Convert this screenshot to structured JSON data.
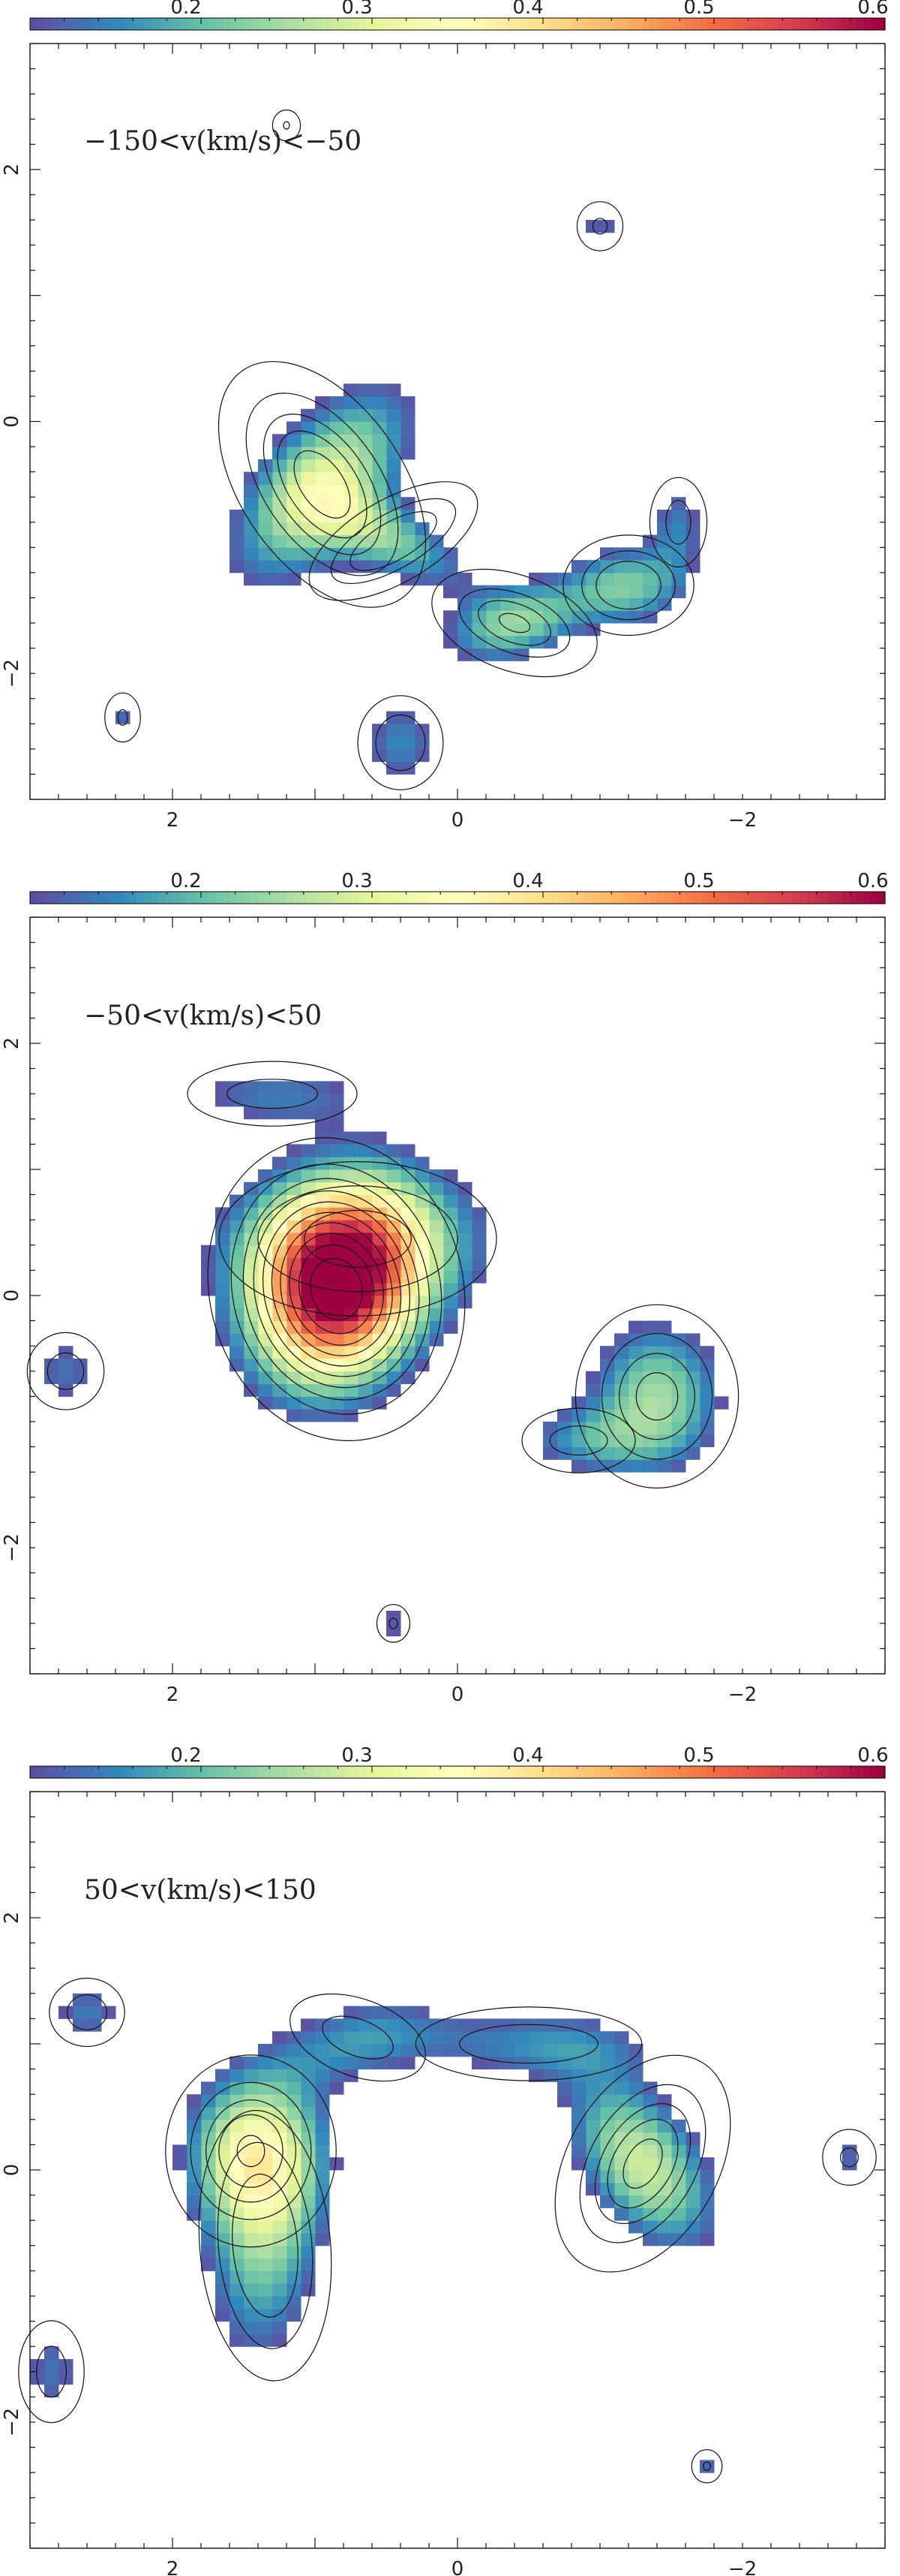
{
  "colorbar": {
    "ticks": [
      "0.2",
      "0.3",
      "0.4",
      "0.5",
      "0.6"
    ],
    "tick_values": [
      0.2,
      0.3,
      0.4,
      0.5,
      0.6
    ],
    "range": [
      0.1,
      0.6
    ],
    "colormap": "Spectral_r",
    "stops": [
      "#5e4fa2",
      "#3288bd",
      "#66c2a5",
      "#abdda4",
      "#e6f598",
      "#ffffbf",
      "#fee08b",
      "#fdae61",
      "#f46d43",
      "#d53e4f",
      "#9e0142"
    ]
  },
  "panels": [
    {
      "label": "−150<v(km/s)<−50"
    },
    {
      "label": "−50<v(km/s)<50"
    },
    {
      "label": "50<v(km/s)<150"
    }
  ],
  "axes": {
    "x_ticks": [
      "2",
      "0",
      "−2"
    ],
    "y_ticks": [
      "2",
      "0",
      "−2"
    ]
  },
  "chart_data": [
    {
      "type": "heatmap",
      "title": "−150<v(km/s)<−50",
      "xlim": [
        3,
        -3
      ],
      "ylim": [
        -3,
        3
      ],
      "x_ticks": [
        2,
        0,
        -2
      ],
      "y_ticks": [
        2,
        0,
        -2
      ],
      "clim": [
        0.1,
        0.6
      ],
      "grid": false,
      "blobs": [
        {
          "x": 0.95,
          "y": -0.5,
          "sx": 0.32,
          "sy": 0.65,
          "angle": 35,
          "peak": 0.29
        },
        {
          "x": 0.45,
          "y": -0.95,
          "sx": 0.45,
          "sy": 0.2,
          "angle": 30,
          "peak": 0.2
        },
        {
          "x": -0.4,
          "y": -1.6,
          "sx": 0.38,
          "sy": 0.22,
          "angle": -20,
          "peak": 0.23
        },
        {
          "x": -1.2,
          "y": -1.3,
          "sx": 0.3,
          "sy": 0.25,
          "angle": 0,
          "peak": 0.2
        },
        {
          "x": -1.55,
          "y": -0.8,
          "sx": 0.15,
          "sy": 0.3,
          "angle": 0,
          "peak": 0.13
        },
        {
          "x": 0.4,
          "y": -2.55,
          "sx": 0.22,
          "sy": 0.28,
          "angle": 0,
          "peak": 0.15
        },
        {
          "x": 2.35,
          "y": -2.35,
          "sx": 0.08,
          "sy": 0.15,
          "angle": 0,
          "peak": 0.12
        },
        {
          "x": -1.0,
          "y": 1.55,
          "sx": 0.12,
          "sy": 0.15,
          "angle": 0,
          "peak": 0.12
        },
        {
          "x": 1.2,
          "y": 2.35,
          "sx": 0.05,
          "sy": 0.07,
          "angle": 0,
          "peak": 0.12
        }
      ]
    },
    {
      "type": "heatmap",
      "title": "−50<v(km/s)<50",
      "xlim": [
        3,
        -3
      ],
      "ylim": [
        -3,
        3
      ],
      "x_ticks": [
        2,
        0,
        -2
      ],
      "y_ticks": [
        2,
        0,
        -2
      ],
      "clim": [
        0.1,
        0.6
      ],
      "grid": false,
      "blobs": [
        {
          "x": 0.85,
          "y": 0.05,
          "sx": 0.42,
          "sy": 0.58,
          "angle": 15,
          "peak": 0.58
        },
        {
          "x": 0.7,
          "y": 0.45,
          "sx": 0.75,
          "sy": 0.45,
          "angle": 0,
          "peak": 0.17
        },
        {
          "x": 1.3,
          "y": 1.6,
          "sx": 0.55,
          "sy": 0.2,
          "angle": 0,
          "peak": 0.13
        },
        {
          "x": -1.4,
          "y": -0.8,
          "sx": 0.35,
          "sy": 0.45,
          "angle": 0,
          "peak": 0.24
        },
        {
          "x": -0.85,
          "y": -1.15,
          "sx": 0.35,
          "sy": 0.2,
          "angle": 0,
          "peak": 0.13
        },
        {
          "x": 2.75,
          "y": -0.6,
          "sx": 0.22,
          "sy": 0.25,
          "angle": 0,
          "peak": 0.13
        },
        {
          "x": 0.45,
          "y": -2.6,
          "sx": 0.07,
          "sy": 0.1,
          "angle": 0,
          "peak": 0.12
        }
      ]
    },
    {
      "type": "heatmap",
      "title": "50<v(km/s)<150",
      "xlim": [
        3,
        -3
      ],
      "ylim": [
        -3,
        3
      ],
      "x_ticks": [
        2,
        0,
        -2
      ],
      "y_ticks": [
        2,
        0,
        -2
      ],
      "clim": [
        0.1,
        0.6
      ],
      "grid": false,
      "blobs": [
        {
          "x": 1.45,
          "y": 0.15,
          "sx": 0.35,
          "sy": 0.45,
          "angle": 0,
          "peak": 0.27
        },
        {
          "x": 1.35,
          "y": -0.6,
          "sx": 0.3,
          "sy": 0.75,
          "angle": 5,
          "peak": 0.2
        },
        {
          "x": -1.3,
          "y": 0.05,
          "sx": 0.3,
          "sy": 0.55,
          "angle": -30,
          "peak": 0.28
        },
        {
          "x": -0.5,
          "y": 1.0,
          "sx": 0.7,
          "sy": 0.22,
          "angle": 0,
          "peak": 0.14
        },
        {
          "x": 0.7,
          "y": 1.05,
          "sx": 0.45,
          "sy": 0.25,
          "angle": -20,
          "peak": 0.13
        },
        {
          "x": 2.6,
          "y": 1.25,
          "sx": 0.2,
          "sy": 0.2,
          "angle": 0,
          "peak": 0.14
        },
        {
          "x": 2.85,
          "y": -1.6,
          "sx": 0.18,
          "sy": 0.35,
          "angle": 0,
          "peak": 0.13
        },
        {
          "x": -2.75,
          "y": 0.1,
          "sx": 0.15,
          "sy": 0.18,
          "angle": 0,
          "peak": 0.12
        },
        {
          "x": -1.75,
          "y": -2.35,
          "sx": 0.06,
          "sy": 0.08,
          "angle": 0,
          "peak": 0.12
        }
      ]
    }
  ]
}
